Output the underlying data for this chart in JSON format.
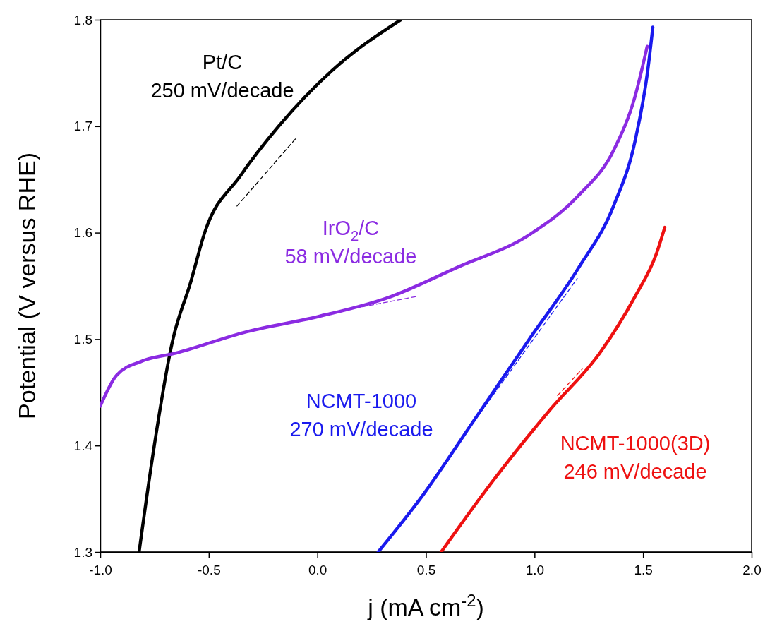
{
  "chart_data": {
    "type": "line",
    "xlabel": "j (mA cm$^{-2}$)",
    "ylabel": "Potential (V versus RHE)",
    "xlim": [
      -1.0,
      2.0
    ],
    "xticks": [
      {
        "value": -1,
        "label": "-1.0"
      },
      {
        "value": -0.5,
        "label": "-0.5"
      },
      {
        "value": 0,
        "label": "0.0"
      },
      {
        "value": 0.5,
        "label": "0.5"
      },
      {
        "value": 1,
        "label": "1.0"
      },
      {
        "value": 1.5,
        "label": "1.5"
      },
      {
        "value": 2,
        "label": "2.0"
      }
    ],
    "ylim": [
      1.3,
      1.8
    ],
    "yticks": [
      1.3,
      1.4,
      1.5,
      1.6,
      1.7,
      1.8
    ],
    "grid": false,
    "marker": "none",
    "series": [
      {
        "color": "#000000",
        "line_style": "solid",
        "x": [
          -0.821,
          -0.76,
          -0.665,
          -0.584,
          -0.519,
          -0.356,
          -0.178,
          0.066,
          0.384
        ],
        "values": [
          1.3,
          1.388,
          1.5,
          1.553,
          1.6,
          1.653,
          1.7,
          1.752,
          1.8
        ]
      },
      {
        "color": "#8b2be2",
        "line_style": "solid",
        "x": [
          -1.0,
          -0.925,
          -0.812,
          -0.649,
          -0.324,
          0.001,
          0.326,
          0.651,
          0.976,
          1.203,
          1.366,
          1.463,
          1.519
        ],
        "values": [
          1.437,
          1.466,
          1.479,
          1.487,
          1.507,
          1.521,
          1.539,
          1.568,
          1.598,
          1.635,
          1.678,
          1.728,
          1.775
        ]
      },
      {
        "color": "#1a1aee",
        "line_style": "solid",
        "x": [
          0.28,
          0.488,
          0.716,
          0.976,
          1.203,
          1.366,
          1.463,
          1.522,
          1.545
        ],
        "values": [
          1.3,
          1.354,
          1.422,
          1.5,
          1.567,
          1.626,
          1.686,
          1.753,
          1.793
        ]
      },
      {
        "color": "#ee1111",
        "line_style": "solid",
        "x": [
          0.57,
          0.813,
          1.073,
          1.301,
          1.463,
          1.561,
          1.6
        ],
        "values": [
          1.3,
          1.368,
          1.434,
          1.487,
          1.54,
          1.58,
          1.605
        ]
      },
      {
        "color": "#000000",
        "line_style": "dashed",
        "x": [
          -0.37,
          -0.097
        ],
        "values": [
          1.625,
          1.689
        ]
      },
      {
        "color": "#8b2be2",
        "line_style": "dashed",
        "x": [
          0.017,
          0.456
        ],
        "values": [
          1.523,
          1.54
        ]
      },
      {
        "color": "#1a1aee",
        "line_style": "dashed",
        "x": [
          0.716,
          1.197
        ],
        "values": [
          1.421,
          1.557
        ]
      },
      {
        "color": "#ee1111",
        "line_style": "dashed",
        "x": [
          1.106,
          1.22
        ],
        "values": [
          1.447,
          1.472
        ]
      }
    ],
    "annotations": [
      "Pt/C\n250 mV/decade",
      "IrO$_{2}$/C\n58 mV/decade",
      "NCMT-1000\n270 mV/decade",
      "NCMT-1000(3D)\n246 mV/decade"
    ]
  }
}
